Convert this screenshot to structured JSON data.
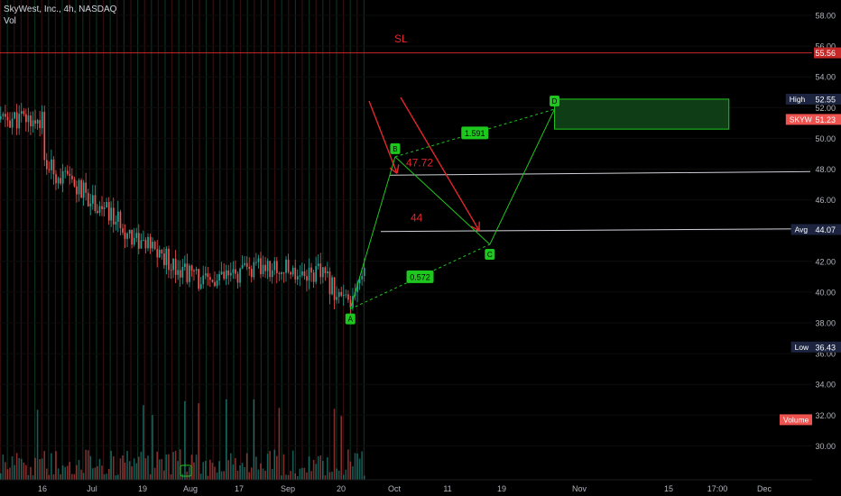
{
  "header": {
    "title": "SkyWest, Inc., 4h, NASDAQ",
    "volume_label": "Vol"
  },
  "colors": {
    "up": "#26a69a",
    "down": "#ef5350",
    "pattern": "#1ec71e",
    "annotation": "#e1272c",
    "sl_line": "#c62828",
    "zone_fill": "#0f3d16",
    "background": "#000000"
  },
  "chart_data": {
    "type": "candlestick",
    "symbol": "SKYW",
    "interval": "4h",
    "exchange": "NASDAQ",
    "y_axis": {
      "ticks": [
        30.0,
        32.0,
        34.0,
        36.0,
        38.0,
        40.0,
        42.0,
        44.0,
        46.0,
        48.0,
        50.0,
        52.0,
        54.0,
        56.0,
        58.0
      ],
      "range": [
        28.9,
        60.2
      ]
    },
    "x_axis": {
      "ticks": [
        "16",
        "Jul",
        "19",
        "Aug",
        "17",
        "Sep",
        "20",
        "Oct",
        "11",
        "19",
        "Nov",
        "15",
        "17:00",
        "Dec"
      ]
    },
    "price_labels": [
      {
        "label": "",
        "value": "55.56",
        "price": 55.56
      },
      {
        "label": "High",
        "value": "52.55",
        "price": 52.55
      },
      {
        "label": "SKYW",
        "value": "51.23",
        "price": 51.23
      },
      {
        "label": "Avg",
        "value": "44.07",
        "price": 44.07
      },
      {
        "label": "Low",
        "value": "36.43",
        "price": 36.43
      },
      {
        "label": "Volume",
        "value": "",
        "price": 31.7
      }
    ],
    "harmonic_pattern": {
      "points": [
        {
          "label": "A",
          "date": "2021-08-17",
          "price": 38.9
        },
        {
          "label": "B",
          "date": "2021-08-26",
          "price": 48.8
        },
        {
          "label": "C",
          "date": "2021-09-14",
          "price": 43.1
        },
        {
          "label": "D",
          "date": "2021-09-27",
          "price": 51.9
        }
      ],
      "ratios": [
        {
          "text": "0.572",
          "between": [
            "A",
            "C"
          ]
        },
        {
          "text": "1.591",
          "between": [
            "B",
            "D"
          ]
        }
      ]
    },
    "annotations": {
      "stop_loss_label": "SL",
      "stop_loss_price": 55.56,
      "targets": [
        {
          "text": "47.72",
          "price": 47.72
        },
        {
          "text": "44",
          "price": 44.0
        }
      ],
      "zone": {
        "price_top": 52.55,
        "price_bottom": 50.6,
        "from_date": "2021-09-27",
        "to_date": "2021-11-01"
      }
    },
    "candles_summary": [
      {
        "date": "2021-06-16",
        "price": 48.4
      },
      {
        "date": "2021-06-25",
        "price": 46.3
      },
      {
        "date": "2021-07-06",
        "price": 43.2
      },
      {
        "date": "2021-07-19",
        "price": 40.5
      },
      {
        "date": "2021-07-30",
        "price": 41.6
      },
      {
        "date": "2021-08-11",
        "price": 41.2
      },
      {
        "date": "2021-08-17",
        "price": 38.9
      },
      {
        "date": "2021-08-26",
        "price": 48.8
      },
      {
        "date": "2021-09-02",
        "price": 46.1
      },
      {
        "date": "2021-09-14",
        "price": 43.1
      },
      {
        "date": "2021-09-22",
        "price": 46.9
      },
      {
        "date": "2021-09-27",
        "price": 51.9
      },
      {
        "date": "2021-09-28",
        "price": 51.23
      }
    ]
  }
}
